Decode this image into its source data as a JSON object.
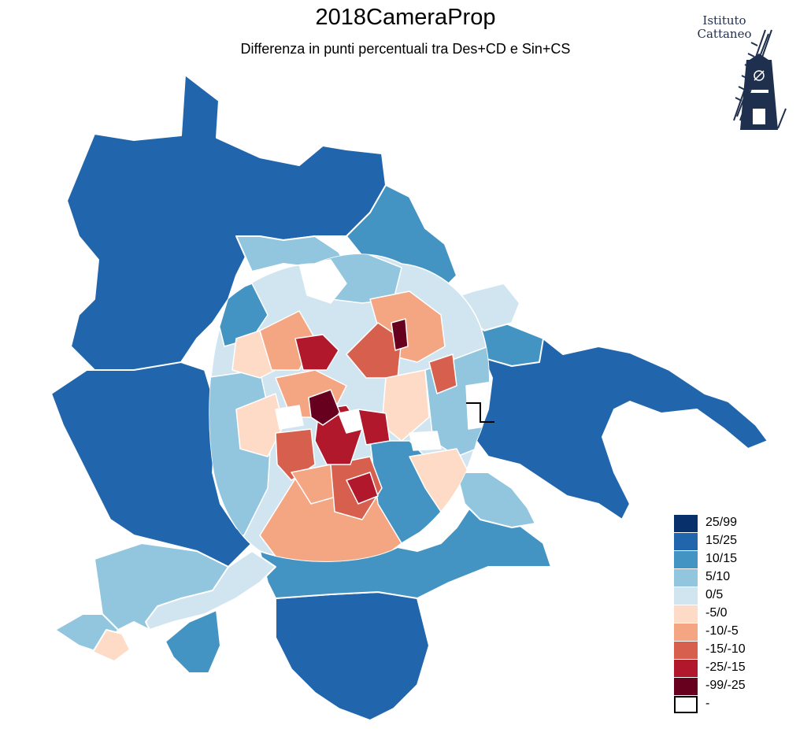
{
  "title": "2018CameraProp",
  "subtitle": "Differenza in punti percentuali tra Des+CD e Sin+CS",
  "logo": {
    "line1": "Istituto",
    "line2": "Cattaneo",
    "icon": "windmill-icon",
    "color": "#1f2f4e"
  },
  "legend": {
    "items": [
      {
        "label": "25/99",
        "color": "#08306b"
      },
      {
        "label": "15/25",
        "color": "#2166ac"
      },
      {
        "label": "10/15",
        "color": "#4393c3"
      },
      {
        "label": "5/10",
        "color": "#92c5de"
      },
      {
        "label": "0/5",
        "color": "#d1e5f0"
      },
      {
        "label": "-5/0",
        "color": "#fddbc7"
      },
      {
        "label": "-10/-5",
        "color": "#f4a582"
      },
      {
        "label": "-15/-10",
        "color": "#d6604d"
      },
      {
        "label": "-25/-15",
        "color": "#b2182b"
      },
      {
        "label": "-99/-25",
        "color": "#67001f"
      },
      {
        "label": "-",
        "color": "#ffffff"
      }
    ]
  }
}
